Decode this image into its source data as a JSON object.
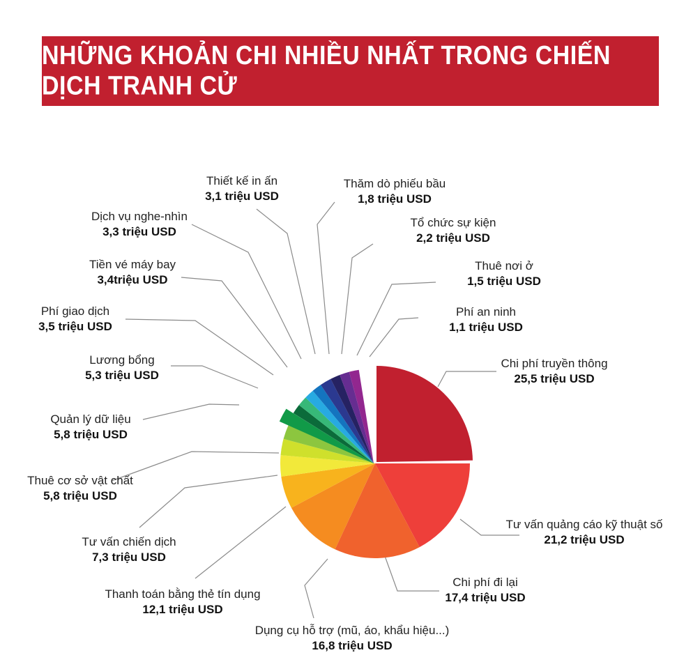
{
  "header": {
    "title": "NHỮNG KHOẢN CHI NHIỀU NHẤT TRONG CHIẾN DỊCH TRANH CỬ"
  },
  "chart_data": {
    "type": "pie",
    "title": "NHỮNG KHOẢN CHI NHIỀU NHẤT TRONG CHIẾN DỊCH TRANH CỬ",
    "unit": "triệu USD",
    "slices": [
      {
        "label": "Chi phí truyền thông",
        "value": 25.5,
        "value_label": "25,5 triệu USD",
        "color": "#c1202f"
      },
      {
        "label": "Tư vấn quảng cáo kỹ thuật số",
        "value": 21.2,
        "value_label": "21,2 triệu USD",
        "color": "#ee3f3a"
      },
      {
        "label": "Chi phí đi lại",
        "value": 17.4,
        "value_label": "17,4 triệu USD",
        "color": "#f0622d"
      },
      {
        "label": "Dụng cụ hỗ trợ (mũ, áo, khẩu hiệu...)",
        "value": 16.8,
        "value_label": "16,8 triệu USD",
        "color": "#f58c20"
      },
      {
        "label": "Thanh toán bằng thẻ tín dụng",
        "value": 12.1,
        "value_label": "12,1 triệu USD",
        "color": "#f8b31d"
      },
      {
        "label": "Tư vấn chiến dịch",
        "value": 7.3,
        "value_label": "7,3 triệu USD",
        "color": "#f2e93a"
      },
      {
        "label": "Thuê cơ sở vật chất",
        "value": 5.8,
        "value_label": "5,8 triệu USD",
        "color": "#cfe02c"
      },
      {
        "label": "Quản lý dữ liệu",
        "value": 5.8,
        "value_label": "5,8 triệu USD",
        "color": "#8cc63f"
      },
      {
        "label": "Lương bổng",
        "value": 5.3,
        "value_label": "5,3 triệu USD",
        "color": "#119a48"
      },
      {
        "label": "Phí giao dịch",
        "value": 3.5,
        "value_label": "3,5 triệu USD",
        "color": "#0b6b3a"
      },
      {
        "label": "Tiền vé máy bay",
        "value": 3.4,
        "value_label": "3,4triệu USD",
        "color": "#37b878"
      },
      {
        "label": "Dịch vụ nghe-nhìn",
        "value": 3.3,
        "value_label": "3,3 triệu USD",
        "color": "#27aae1"
      },
      {
        "label": "Thiết kế in ấn",
        "value": 3.1,
        "value_label": "3,1 triệu USD",
        "color": "#1474bf"
      },
      {
        "label": "Thăm dò phiếu bầu",
        "value": 1.8,
        "value_label": "1,8 triệu USD",
        "color": "#2b3990"
      },
      {
        "label": "Tổ chức sự kiện",
        "value": 2.2,
        "value_label": "2,2 triệu USD",
        "color": "#262262"
      },
      {
        "label": "Thuê nơi ở",
        "value": 1.5,
        "value_label": "1,5 triệu USD",
        "color": "#662d91"
      },
      {
        "label": "Phí an ninh",
        "value": 1.1,
        "value_label": "1,1 triệu USD",
        "color": "#92278f"
      }
    ]
  }
}
